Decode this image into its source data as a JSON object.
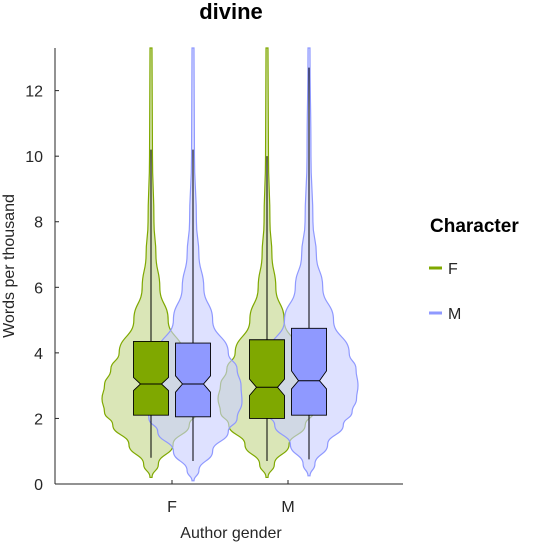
{
  "chart_data": {
    "type": "violin-box",
    "title": "divine",
    "xlabel": "Author gender",
    "ylabel": "Words per thousand",
    "categories": [
      "F",
      "M"
    ],
    "ylim": [
      0,
      13.3
    ],
    "yticks": [
      0,
      2,
      4,
      6,
      8,
      10,
      12
    ],
    "grid": false,
    "legend": {
      "title": "Character",
      "position": "right",
      "entries": [
        {
          "name": "F",
          "color": "#7fa800"
        },
        {
          "name": "M",
          "color": "#8f99ff"
        }
      ]
    },
    "series": [
      {
        "name": "F",
        "color": "#7fa800",
        "box_fill": "#7fa800",
        "violin_fill": "#c4d68a",
        "groups": [
          {
            "category": "F",
            "whisker_low": 0.8,
            "q1": 2.1,
            "median": 3.05,
            "q3": 4.35,
            "whisker_high": 10.2,
            "notch_low": 2.85,
            "notch_high": 3.25,
            "violin": {
              "y": [
                0.2,
                0.6,
                1.2,
                1.8,
                2.2,
                2.6,
                3.0,
                3.5,
                4.0,
                5.0,
                6.0,
                7.0,
                8.0,
                10.0,
                13.3
              ],
              "w": [
                0.02,
                0.15,
                0.45,
                0.78,
                0.95,
                1.0,
                0.95,
                0.82,
                0.65,
                0.35,
                0.18,
                0.1,
                0.06,
                0.03,
                0.02
              ]
            }
          },
          {
            "category": "M",
            "whisker_low": 0.7,
            "q1": 2.0,
            "median": 2.95,
            "q3": 4.4,
            "whisker_high": 10.0,
            "notch_low": 2.7,
            "notch_high": 3.2,
            "violin": {
              "y": [
                0.2,
                0.6,
                1.2,
                1.8,
                2.2,
                2.6,
                3.0,
                3.5,
                4.0,
                5.0,
                6.0,
                7.0,
                8.0,
                10.0,
                13.3
              ],
              "w": [
                0.02,
                0.15,
                0.45,
                0.78,
                0.95,
                1.0,
                0.95,
                0.82,
                0.65,
                0.35,
                0.18,
                0.1,
                0.06,
                0.03,
                0.02
              ]
            }
          }
        ]
      },
      {
        "name": "M",
        "color": "#8f99ff",
        "box_fill": "#8f99ff",
        "violin_fill": "#c9ceff",
        "groups": [
          {
            "category": "F",
            "whisker_low": 0.7,
            "q1": 2.05,
            "median": 3.05,
            "q3": 4.3,
            "whisker_high": 10.2,
            "notch_low": 2.8,
            "notch_high": 3.3,
            "violin": {
              "y": [
                0.1,
                0.4,
                1.0,
                1.6,
                2.0,
                2.5,
                3.0,
                3.5,
                4.0,
                5.0,
                6.0,
                7.0,
                8.0,
                10.0,
                13.3
              ],
              "w": [
                0.02,
                0.12,
                0.4,
                0.72,
                0.9,
                1.0,
                0.98,
                0.9,
                0.72,
                0.4,
                0.22,
                0.12,
                0.07,
                0.03,
                0.02
              ]
            }
          },
          {
            "category": "M",
            "whisker_low": 0.75,
            "q1": 2.1,
            "median": 3.15,
            "q3": 4.75,
            "whisker_high": 12.7,
            "notch_low": 2.9,
            "notch_high": 3.45,
            "violin": {
              "y": [
                0.25,
                0.6,
                1.2,
                1.8,
                2.2,
                2.6,
                3.0,
                3.5,
                4.0,
                5.0,
                6.0,
                7.0,
                8.0,
                10.0,
                13.3
              ],
              "w": [
                0.02,
                0.12,
                0.38,
                0.7,
                0.88,
                0.97,
                1.0,
                0.96,
                0.82,
                0.5,
                0.28,
                0.15,
                0.08,
                0.04,
                0.02
              ]
            }
          }
        ]
      }
    ]
  }
}
